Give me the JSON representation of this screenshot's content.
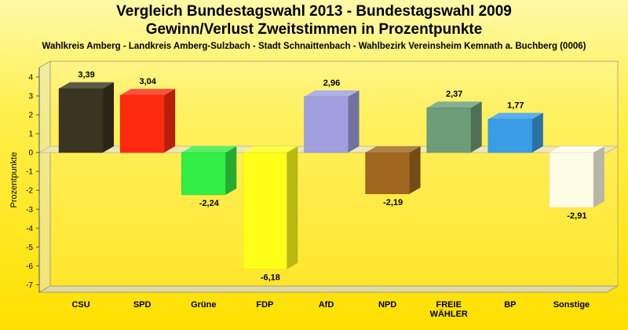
{
  "chart_data": {
    "type": "bar",
    "title": "Vergleich Bundestagswahl 2013 - Bundestagswahl 2009",
    "subtitle": "Gewinn/Verlust Zweitstimmen in Prozentpunkte",
    "caption": "Wahlkreis Amberg - Landkreis Amberg-Sulzbach - Stadt Schnaittenbach - Wahlbezirk Vereinsheim Kemnath a. Buchberg (0006)",
    "ylabel": "Prozentpunkte",
    "xlabel": "",
    "ylim": [
      -7.4,
      4.5
    ],
    "yticks": [
      4,
      3,
      2,
      1,
      0,
      -1,
      -2,
      -3,
      -4,
      -5,
      -6,
      -7
    ],
    "categories": [
      "CSU",
      "SPD",
      "Grüne",
      "FDP",
      "AfD",
      "NPD",
      "FREIE WÄHLER",
      "BP",
      "Sonstige"
    ],
    "category_lines": [
      [
        "CSU"
      ],
      [
        "SPD"
      ],
      [
        "Grüne"
      ],
      [
        "FDP"
      ],
      [
        "AfD"
      ],
      [
        "NPD"
      ],
      [
        "FREIE",
        "WÄHLER"
      ],
      [
        "BP"
      ],
      [
        "Sonstige"
      ]
    ],
    "values": [
      3.39,
      3.04,
      -2.24,
      -6.18,
      2.96,
      -2.19,
      2.37,
      1.77,
      -2.91
    ],
    "value_labels": [
      "3,39",
      "3,04",
      "-2,24",
      "-6,18",
      "2,96",
      "-2,19",
      "2,37",
      "1,77",
      "-2,91"
    ],
    "colors": [
      "#3a3520",
      "#ff2a10",
      "#33ee44",
      "#ffff1a",
      "#9f9fe0",
      "#a0681e",
      "#6c9c78",
      "#3a9ee6",
      "#fffde6"
    ],
    "grid": false,
    "legend": "none"
  }
}
